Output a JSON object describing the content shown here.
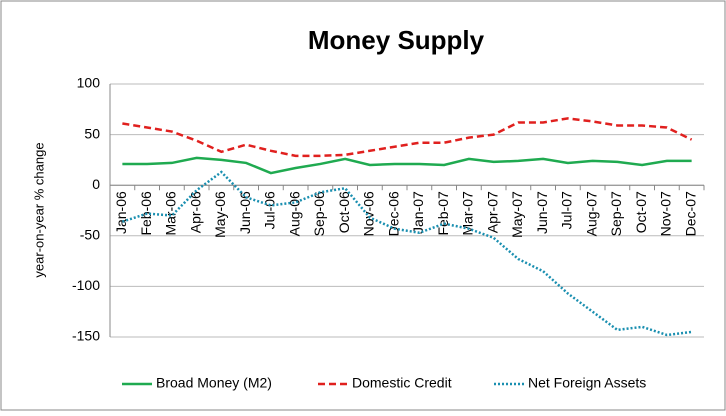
{
  "chart_data": {
    "type": "line",
    "title": "Money Supply",
    "y_label": "year-on-year % change",
    "categories": [
      "Jan-06",
      "Feb-06",
      "Mar-06",
      "Apr-06",
      "May-06",
      "Jun-06",
      "Jul-06",
      "Aug-06",
      "Sep-06",
      "Oct-06",
      "Nov-06",
      "Dec-06",
      "Jan-07",
      "Feb-07",
      "Mar-07",
      "Apr-07",
      "May-07",
      "Jun-07",
      "Jul-07",
      "Aug-07",
      "Sep-07",
      "Oct-07",
      "Nov-07",
      "Dec-07"
    ],
    "series": [
      {
        "name": "Broad Money (M2)",
        "color": "#1faa50",
        "style": "solid",
        "values": [
          21,
          21,
          22,
          27,
          25,
          22,
          12,
          17,
          21,
          26,
          20,
          21,
          21,
          20,
          26,
          23,
          24,
          26,
          22,
          24,
          23,
          20,
          24,
          24
        ]
      },
      {
        "name": "Domestic Credit",
        "color": "#e0201e",
        "style": "dashed",
        "values": [
          61,
          57,
          53,
          44,
          33,
          40,
          34,
          29,
          29,
          30,
          34,
          38,
          42,
          42,
          47,
          50,
          62,
          62,
          66,
          63,
          59,
          59,
          57,
          45
        ]
      },
      {
        "name": "Net Foreign Assets",
        "color": "#1a8fb0",
        "style": "dotted",
        "values": [
          -36,
          -28,
          -30,
          -5,
          13,
          -12,
          -20,
          -17,
          -7,
          -3,
          -32,
          -43,
          -47,
          -38,
          -43,
          -52,
          -73,
          -85,
          -107,
          -125,
          -143,
          -140,
          -148,
          -145
        ]
      }
    ],
    "ylim": [
      -150,
      100
    ],
    "yticks": [
      -150,
      -100,
      -50,
      0,
      50,
      100
    ],
    "grid": true,
    "legend": "bottom"
  }
}
